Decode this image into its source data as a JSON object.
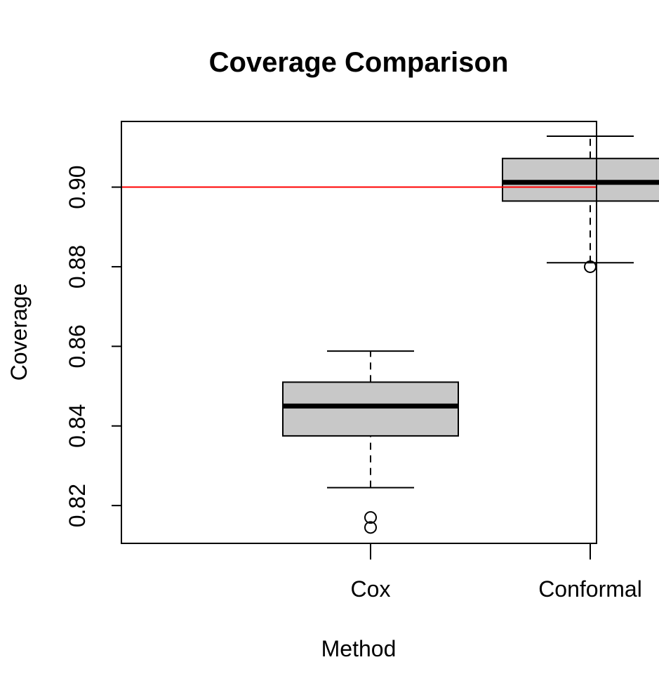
{
  "chart_data": {
    "type": "boxplot",
    "title": "Coverage Comparison",
    "xlabel": "Method",
    "ylabel": "Coverage",
    "ylim": [
      0.8105,
      0.9165
    ],
    "yticks": [
      "0.82",
      "0.84",
      "0.86",
      "0.88",
      "0.90"
    ],
    "grid": false,
    "reference_line": {
      "y": 0.9,
      "color": "#ff0000"
    },
    "box_fill": "#c8c8c8",
    "categories": [
      "Cox",
      "Conformal"
    ],
    "series": [
      {
        "category": "Cox",
        "whisker_low": 0.8245,
        "q1": 0.8375,
        "median": 0.845,
        "q3": 0.851,
        "whisker_high": 0.8588,
        "outliers": [
          0.817,
          0.8145
        ]
      },
      {
        "category": "Conformal",
        "whisker_low": 0.881,
        "q1": 0.8965,
        "median": 0.9012,
        "q3": 0.9072,
        "whisker_high": 0.9128,
        "outliers": [
          0.88
        ]
      }
    ]
  }
}
